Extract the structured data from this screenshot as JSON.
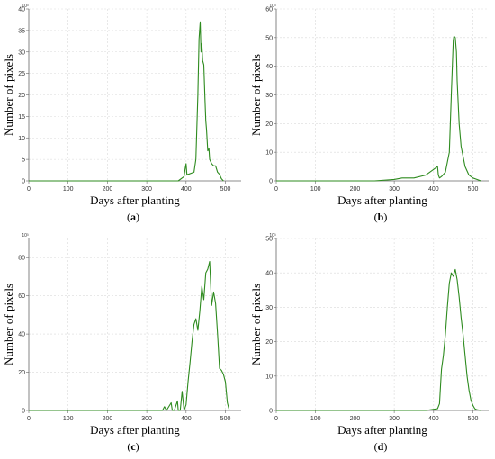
{
  "colors": {
    "series": "#2e8b1f",
    "grid": "#d9d9d9",
    "axis": "#666666"
  },
  "chart_data": [
    {
      "type": "line",
      "panel_label": "a",
      "xlabel": "Days after planting",
      "ylabel": "Number of pixels",
      "y_multiplier_label": "10³",
      "xlim": [
        0,
        540
      ],
      "ylim": [
        0,
        40
      ],
      "xticks": [
        0,
        100,
        200,
        300,
        400,
        500
      ],
      "yticks": [
        0,
        5,
        10,
        15,
        20,
        25,
        30,
        35,
        40
      ],
      "grid": true,
      "x": [
        0,
        380,
        395,
        398,
        400,
        402,
        405,
        420,
        425,
        430,
        433,
        436,
        438,
        440,
        442,
        445,
        448,
        450,
        452,
        455,
        458,
        460,
        465,
        470,
        475,
        480,
        485,
        490,
        495
      ],
      "y": [
        0,
        0,
        1,
        3,
        4,
        1.5,
        1.5,
        2,
        5,
        20,
        33,
        37,
        30,
        32,
        28,
        27,
        19,
        14,
        12,
        7,
        7.5,
        5,
        4,
        3.5,
        3.5,
        2,
        1.5,
        0.5,
        0
      ]
    },
    {
      "type": "line",
      "panel_label": "b",
      "xlabel": "Days after planting",
      "ylabel": "Number of pixels",
      "y_multiplier_label": "10³",
      "xlim": [
        0,
        540
      ],
      "ylim": [
        0,
        60
      ],
      "xticks": [
        0,
        100,
        200,
        300,
        400,
        500
      ],
      "yticks": [
        0,
        10,
        20,
        30,
        40,
        50,
        60
      ],
      "grid": true,
      "x": [
        0,
        150,
        200,
        250,
        300,
        320,
        350,
        380,
        400,
        405,
        410,
        412,
        415,
        420,
        430,
        440,
        445,
        450,
        452,
        455,
        458,
        460,
        465,
        470,
        480,
        490,
        500,
        510,
        520
      ],
      "y": [
        0,
        0,
        0,
        0,
        0.5,
        1,
        1,
        2,
        4,
        4.5,
        5,
        2,
        1,
        1.5,
        3,
        10,
        30,
        49,
        50.5,
        50,
        45,
        35,
        20,
        12,
        5,
        2,
        1,
        0.5,
        0
      ]
    },
    {
      "type": "line",
      "panel_label": "c",
      "xlabel": "Days after planting",
      "ylabel": "Number of pixels",
      "y_multiplier_label": "10³",
      "xlim": [
        0,
        540
      ],
      "ylim": [
        0,
        90
      ],
      "xticks": [
        0,
        100,
        200,
        300,
        400,
        500
      ],
      "yticks": [
        0,
        20,
        40,
        60,
        80
      ],
      "grid": true,
      "x": [
        0,
        340,
        345,
        350,
        362,
        365,
        370,
        378,
        380,
        385,
        390,
        395,
        400,
        405,
        410,
        415,
        420,
        425,
        430,
        435,
        440,
        445,
        450,
        455,
        460,
        465,
        470,
        475,
        480,
        485,
        490,
        495,
        500,
        505,
        510
      ],
      "y": [
        0,
        0,
        2,
        0,
        4,
        0,
        0,
        5,
        0,
        0,
        10,
        0,
        3,
        15,
        25,
        36,
        45,
        48,
        42,
        52,
        65,
        58,
        72,
        74,
        78,
        55,
        62,
        56,
        40,
        22,
        21,
        19,
        15,
        4,
        0
      ]
    },
    {
      "type": "line",
      "panel_label": "d",
      "xlabel": "Days after planting",
      "ylabel": "Number of pixels",
      "y_multiplier_label": "10³",
      "xlim": [
        0,
        540
      ],
      "ylim": [
        0,
        50
      ],
      "xticks": [
        0,
        100,
        200,
        300,
        400,
        500
      ],
      "yticks": [
        0,
        10,
        20,
        30,
        40,
        50
      ],
      "grid": true,
      "x": [
        0,
        380,
        410,
        415,
        418,
        420,
        425,
        430,
        435,
        440,
        445,
        450,
        455,
        460,
        465,
        470,
        475,
        480,
        485,
        490,
        495,
        500,
        505,
        510,
        515,
        520
      ],
      "y": [
        0,
        0,
        0.5,
        2,
        8,
        12,
        16,
        22,
        30,
        37,
        40,
        39,
        41,
        38,
        33,
        27,
        22,
        16,
        10,
        6,
        3,
        1.5,
        0.5,
        0.2,
        0.1,
        0
      ]
    }
  ]
}
